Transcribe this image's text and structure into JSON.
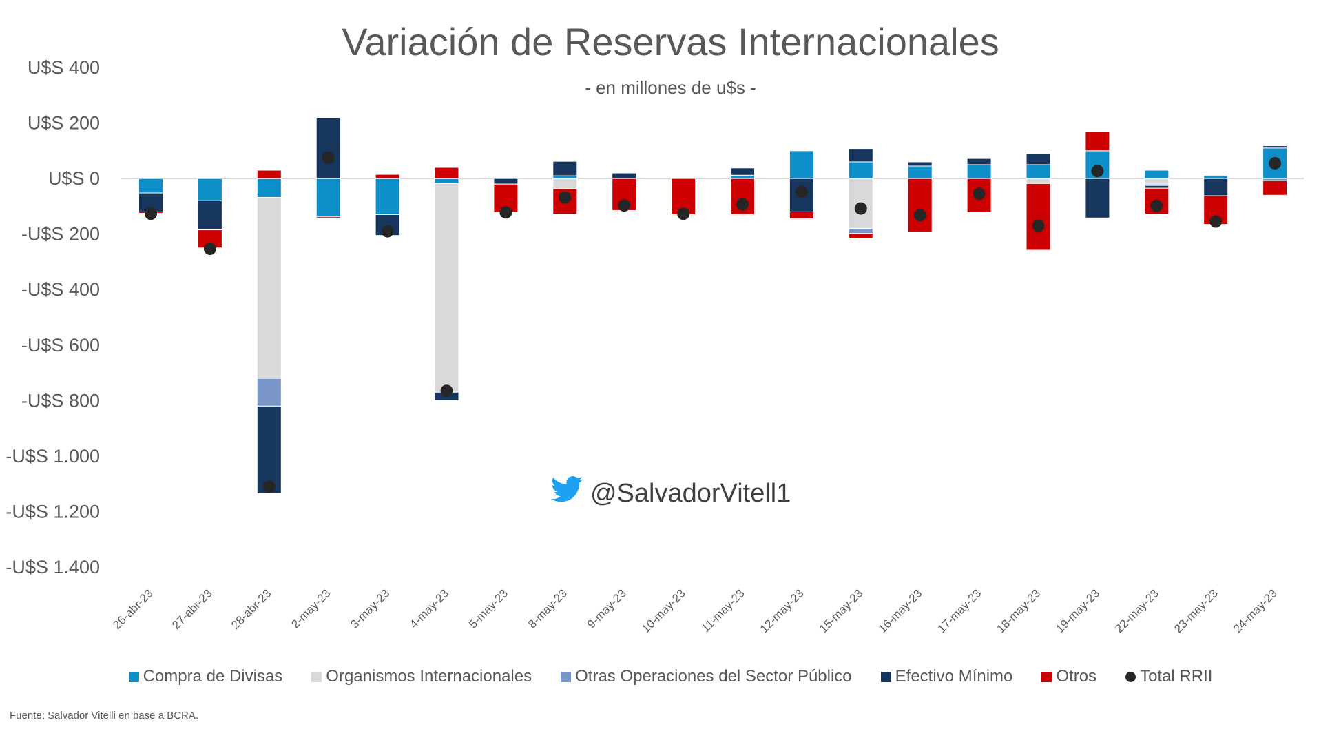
{
  "chart_data": {
    "type": "bar",
    "stacked": true,
    "title": "Variación de Reservas Internacionales",
    "subtitle": "- en millones de u$s -",
    "xlabel": "",
    "ylabel": "",
    "ylim": [
      -1400,
      400
    ],
    "yticks": [
      400,
      200,
      0,
      -200,
      -400,
      -600,
      -800,
      -1000,
      -1200,
      -1400
    ],
    "ytick_labels": [
      "U$S 400",
      "U$S 200",
      "U$S 0",
      "-U$S 200",
      "-U$S 400",
      "-U$S 600",
      "-U$S 800",
      "-U$S 1.000",
      "-U$S 1.200",
      "-U$S 1.400"
    ],
    "categories": [
      "26-abr-23",
      "27-abr-23",
      "28-abr-23",
      "2-may-23",
      "3-may-23",
      "4-may-23",
      "5-may-23",
      "8-may-23",
      "9-may-23",
      "10-may-23",
      "11-may-23",
      "12-may-23",
      "15-may-23",
      "16-may-23",
      "17-may-23",
      "18-may-23",
      "19-may-23",
      "22-may-23",
      "23-may-23",
      "24-may-23"
    ],
    "series": [
      {
        "name": "Compra de Divisas",
        "color": "#0f8fc9",
        "values": [
          -52,
          -80,
          -68,
          -137,
          -130,
          -18,
          0,
          10,
          0,
          0,
          12,
          100,
          60,
          45,
          50,
          50,
          100,
          30,
          12,
          110
        ]
      },
      {
        "name": "Organismos Internacionales",
        "color": "#d9d9d9",
        "values": [
          0,
          0,
          -652,
          0,
          0,
          -752,
          0,
          -37,
          0,
          0,
          0,
          0,
          -180,
          0,
          0,
          -18,
          0,
          -20,
          3,
          0
        ]
      },
      {
        "name": "Otras Operaciones del Sector Público",
        "color": "#7b97c9",
        "values": [
          0,
          0,
          -100,
          0,
          0,
          0,
          0,
          0,
          0,
          0,
          0,
          0,
          -18,
          0,
          0,
          0,
          0,
          -5,
          0,
          -8
        ]
      },
      {
        "name": "Efectivo Mínimo",
        "color": "#17365d",
        "values": [
          -68,
          -105,
          -315,
          220,
          -75,
          -30,
          -20,
          52,
          20,
          3,
          26,
          -120,
          48,
          15,
          22,
          40,
          -142,
          -10,
          -62,
          8
        ]
      },
      {
        "name": "Otros",
        "color": "#cc0000",
        "values": [
          -5,
          -65,
          30,
          -5,
          15,
          40,
          -102,
          -91,
          -115,
          -130,
          -130,
          -25,
          -17,
          -192,
          -122,
          -240,
          68,
          -93,
          -103,
          -52
        ]
      }
    ],
    "total": {
      "name": "Total RRII",
      "color": "#262626",
      "values": [
        -127,
        -253,
        -1110,
        75,
        -190,
        -765,
        -122,
        -68,
        -97,
        -127,
        -93,
        -48,
        -108,
        -132,
        -55,
        -170,
        27,
        -98,
        -155,
        55
      ]
    },
    "legend_position": "bottom",
    "grid": false
  },
  "watermark": "@SalvadorVitell1",
  "source": "Fuente: Salvador Vitelli en base a BCRA."
}
